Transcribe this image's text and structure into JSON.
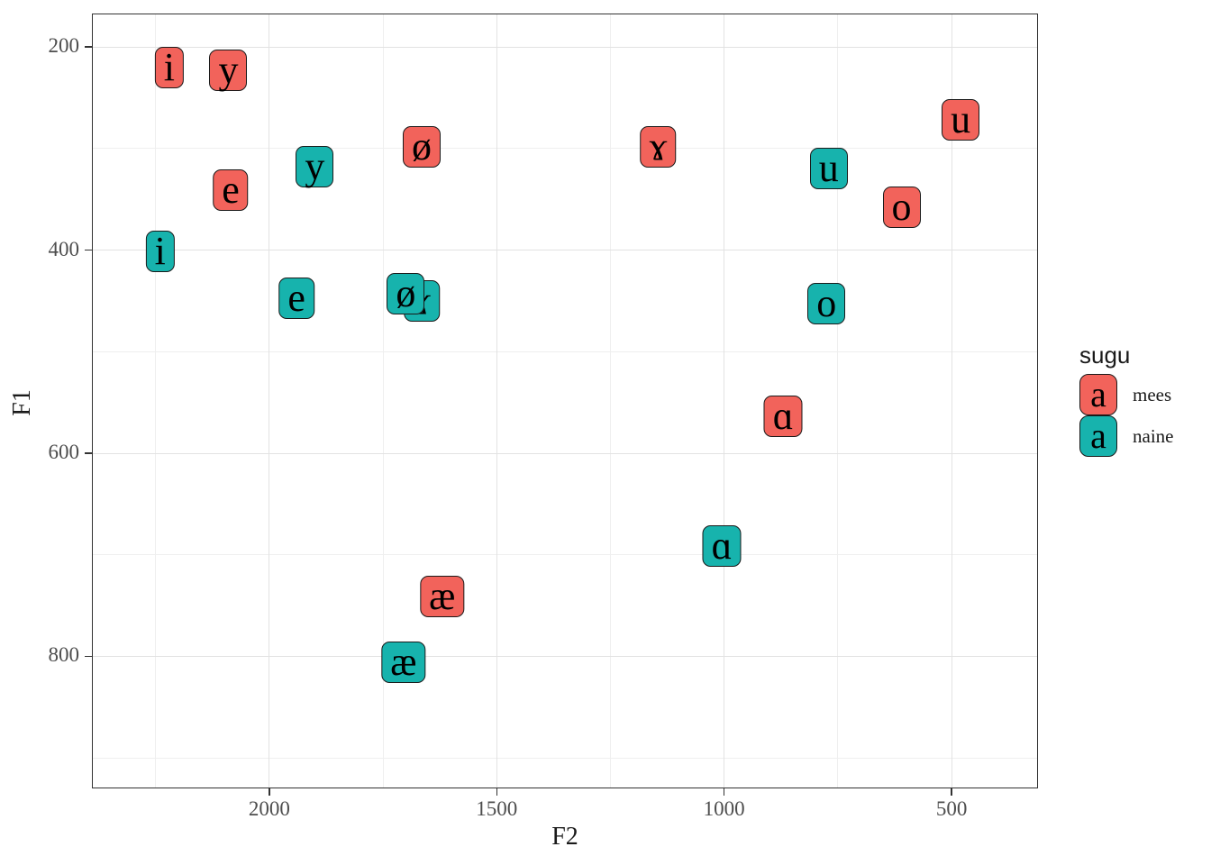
{
  "chart_data": {
    "type": "scatter",
    "title": "",
    "xlabel": "F2",
    "ylabel": "F1",
    "x_axis": {
      "reversed": true,
      "range": [
        2390,
        310
      ],
      "ticks_major": [
        2000,
        1500,
        1000,
        500
      ],
      "ticks_minor": [
        2250,
        1750,
        1250,
        750
      ],
      "tick_labels": [
        "2000",
        "1500",
        "1000",
        "500"
      ]
    },
    "y_axis": {
      "reversed": true,
      "range": [
        167,
        930
      ],
      "ticks_major": [
        200,
        400,
        600,
        800
      ],
      "ticks_minor": [
        300,
        500,
        700,
        900
      ],
      "tick_labels": [
        "200",
        "400",
        "600",
        "800"
      ]
    },
    "legend": {
      "title": "sugu",
      "position": "right",
      "key_glyph": "a",
      "entries": [
        {
          "label": "mees",
          "color": "#F2635B"
        },
        {
          "label": "naine",
          "color": "#17B3AD"
        }
      ]
    },
    "series": [
      {
        "name": "mees",
        "color": "#F2635B",
        "points": [
          {
            "glyph": "i",
            "F2": 2220,
            "F1": 220
          },
          {
            "glyph": "y",
            "F2": 2090,
            "F1": 223
          },
          {
            "glyph": "e",
            "F2": 2085,
            "F1": 341
          },
          {
            "glyph": "ø",
            "F2": 1665,
            "F1": 298
          },
          {
            "glyph": "ɤ",
            "F2": 1145,
            "F1": 298
          },
          {
            "glyph": "u",
            "F2": 480,
            "F1": 272
          },
          {
            "glyph": "o",
            "F2": 610,
            "F1": 358
          },
          {
            "glyph": "ɑ",
            "F2": 870,
            "F1": 564
          },
          {
            "glyph": "æ",
            "F2": 1620,
            "F1": 741
          }
        ]
      },
      {
        "name": "naine",
        "color": "#17B3AD",
        "points": [
          {
            "glyph": "i",
            "F2": 2240,
            "F1": 401
          },
          {
            "glyph": "y",
            "F2": 1900,
            "F1": 318
          },
          {
            "glyph": "e",
            "F2": 1940,
            "F1": 447
          },
          {
            "glyph": "ɤ",
            "F2": 1665,
            "F1": 450
          },
          {
            "glyph": "ø",
            "F2": 1700,
            "F1": 443
          },
          {
            "glyph": "u",
            "F2": 770,
            "F1": 320
          },
          {
            "glyph": "o",
            "F2": 775,
            "F1": 453
          },
          {
            "glyph": "ɑ",
            "F2": 1005,
            "F1": 691
          },
          {
            "glyph": "æ",
            "F2": 1705,
            "F1": 806
          }
        ]
      }
    ],
    "style": {
      "panel_background": "#FFFFFF",
      "panel_border": "#333333",
      "grid_major": "#E2E2E2",
      "grid_minor": "#EFEFEF",
      "tick_mark_color": "#333333",
      "tick_label_color": "#4D4D4D",
      "axis_title_color": "#1A1A1A",
      "label_border": "#1A1A1A"
    }
  }
}
